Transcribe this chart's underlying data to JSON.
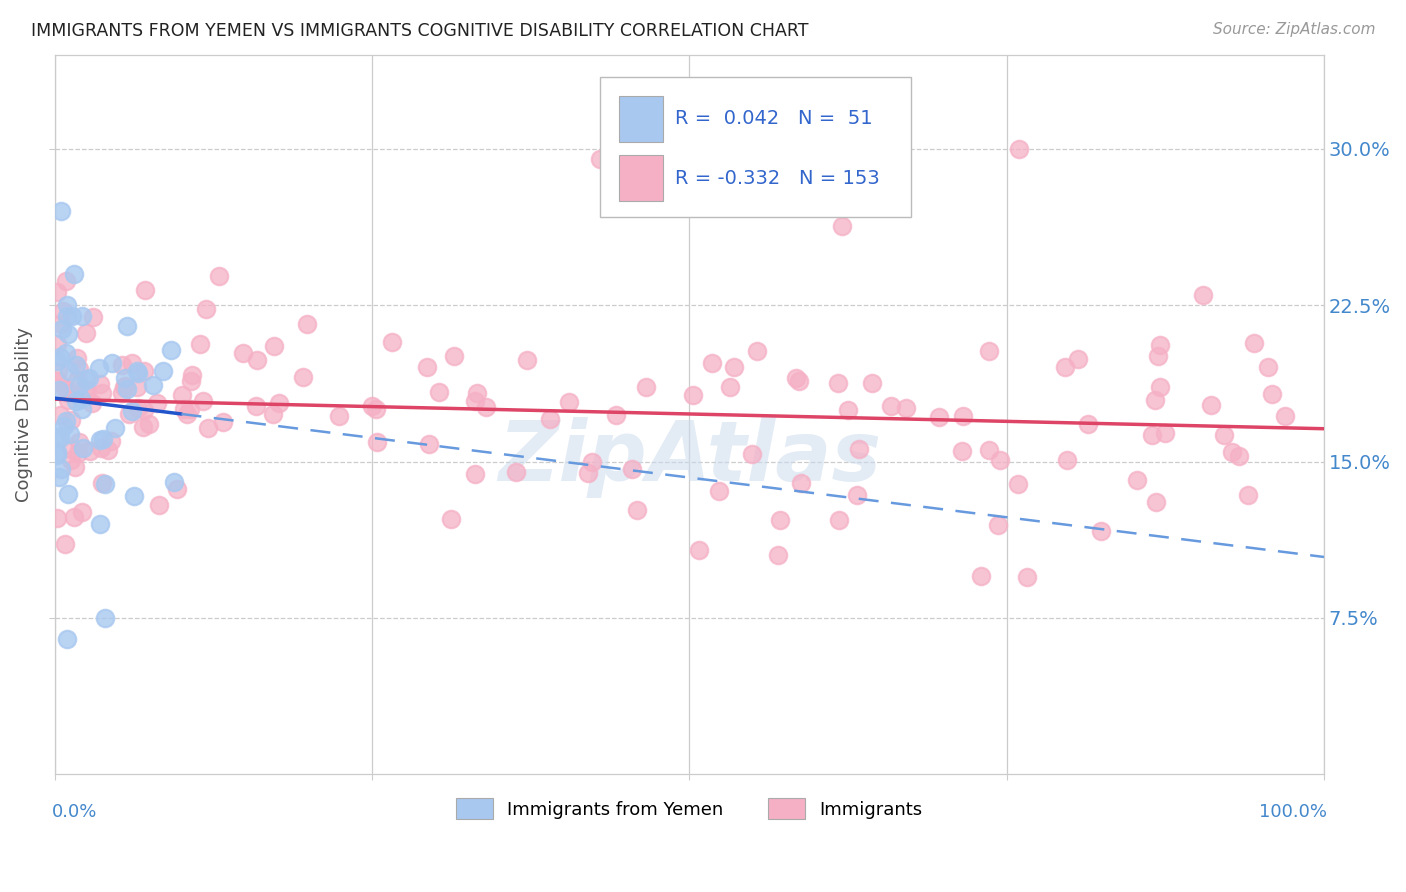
{
  "title": "IMMIGRANTS FROM YEMEN VS IMMIGRANTS COGNITIVE DISABILITY CORRELATION CHART",
  "source": "Source: ZipAtlas.com",
  "ylabel": "Cognitive Disability",
  "ytick_vals": [
    0.075,
    0.15,
    0.225,
    0.3
  ],
  "ytick_labels": [
    "7.5%",
    "15.0%",
    "22.5%",
    "30.0%"
  ],
  "xlim": [
    0.0,
    1.0
  ],
  "ylim": [
    0.0,
    0.345
  ],
  "R_blue": 0.042,
  "N_blue": 51,
  "R_pink": -0.332,
  "N_pink": 153,
  "blue_scatter_color": "#a8c8f0",
  "pink_scatter_color": "#f5b0c5",
  "trend_blue_color": "#2255cc",
  "trend_blue_dash_color": "#6699dd",
  "trend_pink_color": "#dd4466",
  "watermark_color": "#ccdcee",
  "background": "#ffffff",
  "grid_color": "#cccccc",
  "title_color": "#222222",
  "axis_label_color": "#555555",
  "tick_color": "#4488cc",
  "legend_text_color": "#3366cc",
  "bottom_legend_label_blue": "Immigrants from Yemen",
  "bottom_legend_label_pink": "Immigrants"
}
